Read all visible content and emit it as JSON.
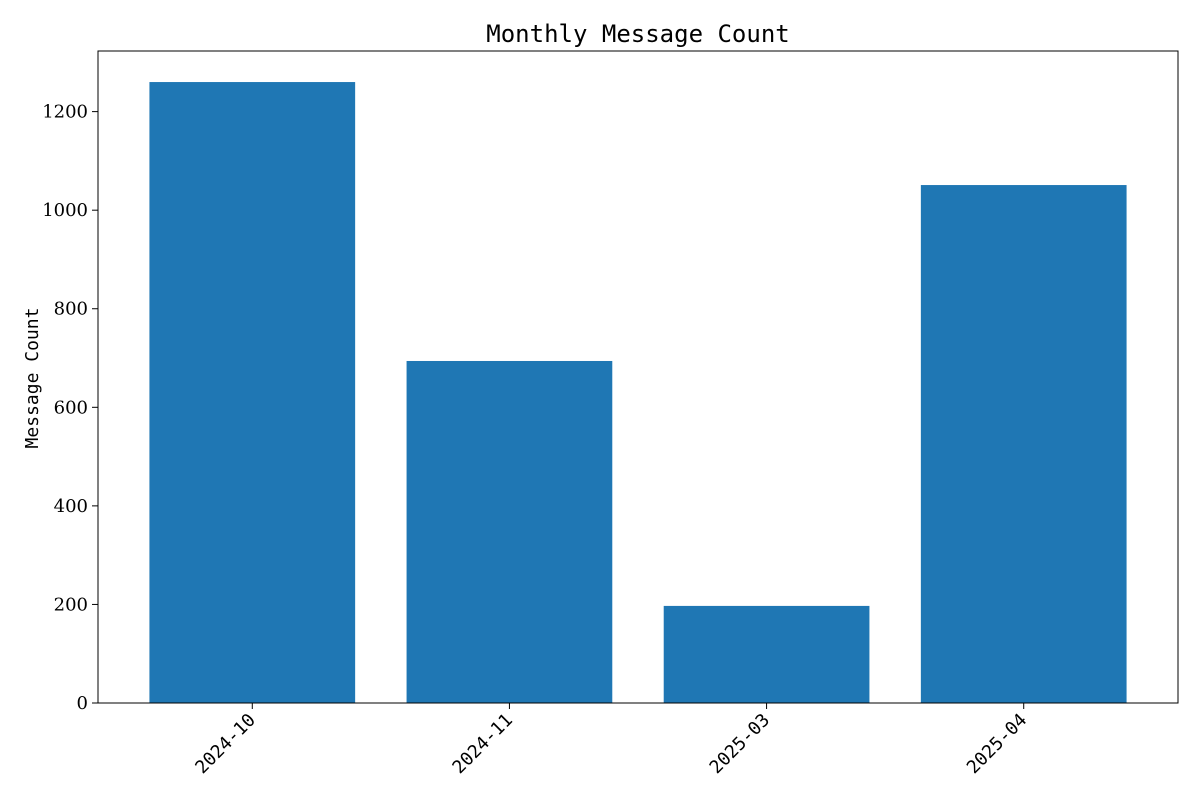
{
  "chart_data": {
    "type": "bar",
    "title": "Monthly Message Count",
    "xlabel": "",
    "ylabel": "Message Count",
    "categories": [
      "2024-10",
      "2024-11",
      "2025-03",
      "2025-04"
    ],
    "values": [
      1260,
      694,
      197,
      1051
    ],
    "ylim": [
      0,
      1323
    ],
    "yticks": [
      0,
      200,
      400,
      600,
      800,
      1000,
      1200
    ],
    "bar_color": "#1f77b4",
    "grid": false,
    "legend": "none"
  }
}
